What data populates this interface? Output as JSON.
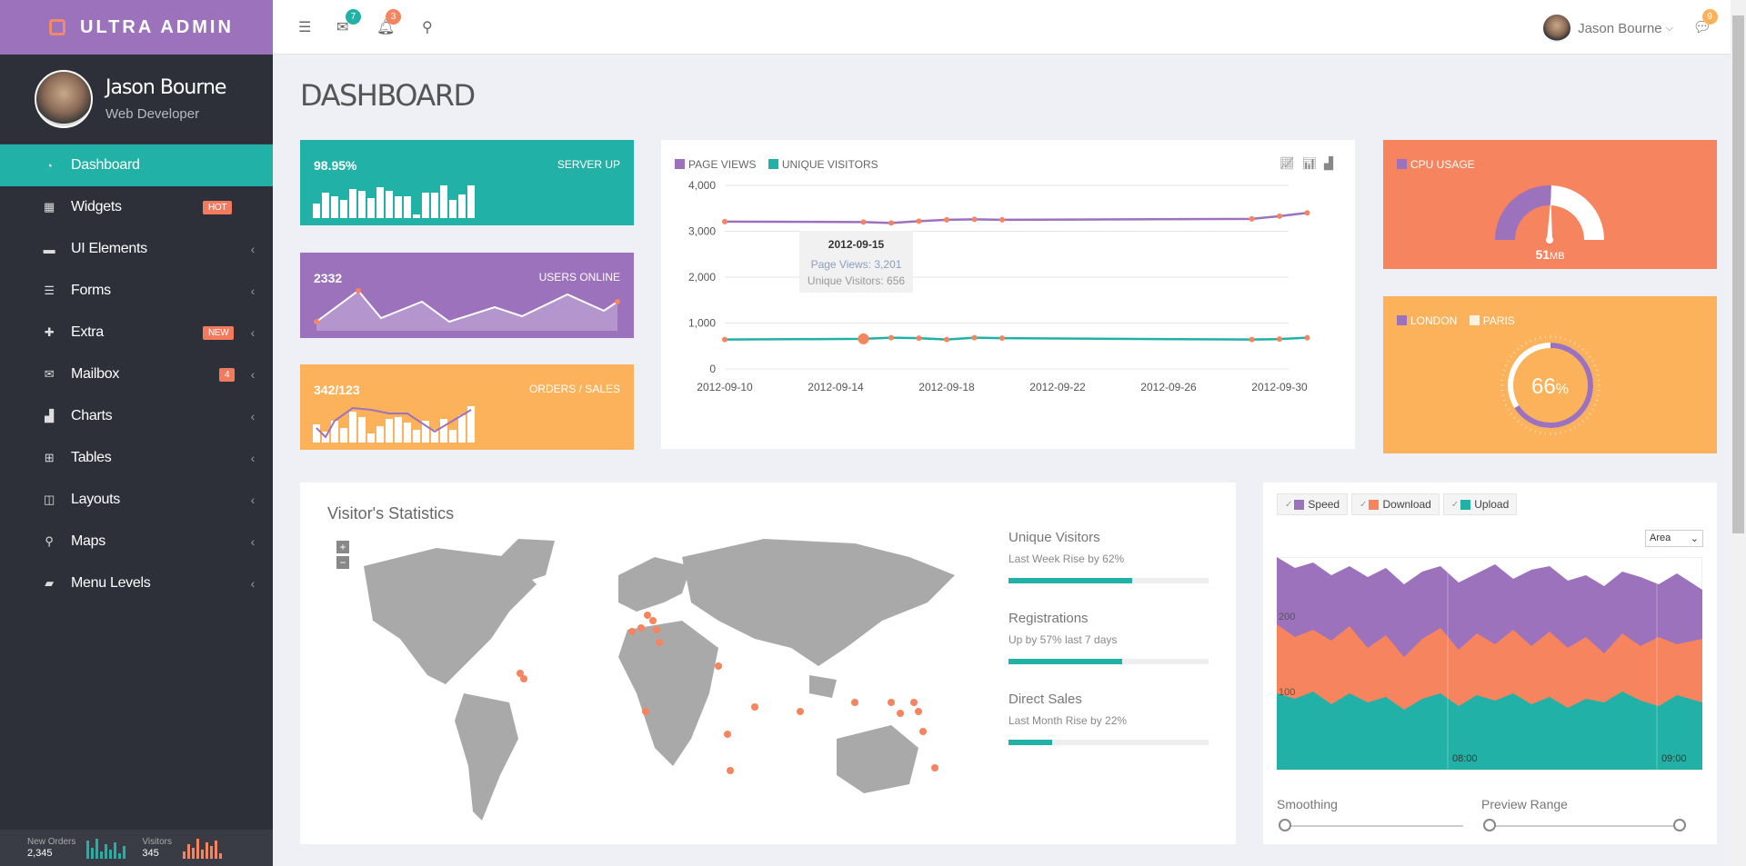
{
  "brand": {
    "name": "ULTRA ADMIN"
  },
  "profile": {
    "name": "Jason Bourne",
    "role": "Web Developer"
  },
  "sidebar": {
    "items": [
      {
        "label": "Dashboard",
        "icon": "dashboard-icon",
        "active": true
      },
      {
        "label": "Widgets",
        "icon": "grid-icon",
        "badge": "HOT"
      },
      {
        "label": "UI Elements",
        "icon": "briefcase-icon"
      },
      {
        "label": "Forms",
        "icon": "sliders-icon"
      },
      {
        "label": "Extra",
        "icon": "gift-icon",
        "badge": "NEW"
      },
      {
        "label": "Mailbox",
        "icon": "envelope-icon",
        "badge": "4"
      },
      {
        "label": "Charts",
        "icon": "bar-chart-icon"
      },
      {
        "label": "Tables",
        "icon": "table-icon"
      },
      {
        "label": "Layouts",
        "icon": "columns-icon"
      },
      {
        "label": "Maps",
        "icon": "map-marker-icon"
      },
      {
        "label": "Menu Levels",
        "icon": "folder-open-icon"
      }
    ],
    "footer": {
      "orders_label": "New Orders",
      "orders_value": "2,345",
      "visitors_label": "Visitors",
      "visitors_value": "345"
    }
  },
  "topbar": {
    "mail_count": "7",
    "notif_count": "3",
    "chat_count": "9",
    "user": "Jason Bourne"
  },
  "page": {
    "title": "DASHBOARD"
  },
  "stats": {
    "server": {
      "value": "98.95%",
      "caption": "SERVER UP"
    },
    "users": {
      "value": "2332",
      "caption": "USERS ONLINE"
    },
    "orders": {
      "value": "342/123",
      "caption": "ORDERS / SALES"
    }
  },
  "chart_data": {
    "type": "line",
    "legend": [
      "PAGE VIEWS",
      "UNIQUE VISITORS"
    ],
    "x_ticks": [
      "2012-09-10",
      "2012-09-14",
      "2012-09-18",
      "2012-09-22",
      "2012-09-26",
      "2012-09-30"
    ],
    "y_ticks": [
      "4,000",
      "3,000",
      "2,000",
      "1,000",
      "0"
    ],
    "ylim": [
      0,
      4000
    ],
    "series": [
      {
        "name": "PAGE VIEWS",
        "x": [
          "2012-09-10",
          "2012-09-15",
          "2012-09-16",
          "2012-09-17",
          "2012-09-18",
          "2012-09-19",
          "2012-09-20",
          "2012-09-29",
          "2012-09-30",
          "2012-10-01"
        ],
        "values": [
          3210,
          3201,
          3180,
          3220,
          3250,
          3260,
          3250,
          3270,
          3330,
          3400
        ]
      },
      {
        "name": "UNIQUE VISITORS",
        "x": [
          "2012-09-10",
          "2012-09-15",
          "2012-09-16",
          "2012-09-17",
          "2012-09-18",
          "2012-09-19",
          "2012-09-20",
          "2012-09-29",
          "2012-09-30",
          "2012-10-01"
        ],
        "values": [
          640,
          656,
          680,
          670,
          640,
          680,
          670,
          640,
          650,
          680
        ]
      }
    ],
    "tooltip": {
      "date": "2012-09-15",
      "pv": "Page Views: 3,201",
      "uv": "Unique Visitors: 656"
    }
  },
  "cpu": {
    "label": "CPU USAGE",
    "value": "51",
    "unit": "MB",
    "level": 0.51
  },
  "city": {
    "label1": "LONDON",
    "label2": "PARIS",
    "value": "66",
    "unit": "%",
    "level": 0.66
  },
  "visitors": {
    "title": "Visitor's Statistics",
    "zoom_in": "+",
    "zoom_out": "−",
    "metrics": [
      {
        "title": "Unique Visitors",
        "sub": "Last Week Rise by 62%",
        "pct": 62
      },
      {
        "title": "Registrations",
        "sub": "Up by 57% last 7 days",
        "pct": 57
      },
      {
        "title": "Direct Sales",
        "sub": "Last Month Rise by 22%",
        "pct": 22
      }
    ]
  },
  "area": {
    "series": [
      "Speed",
      "Download",
      "Upload"
    ],
    "select": "Area",
    "y_ticks": [
      "200",
      "100"
    ],
    "x_ticks": [
      "08:00",
      "09:00"
    ],
    "smoothing": "Smoothing",
    "preview": "Preview Range",
    "colors": {
      "speed": "#9d72bd",
      "download": "#f5845f",
      "upload": "#22b1a7"
    }
  }
}
